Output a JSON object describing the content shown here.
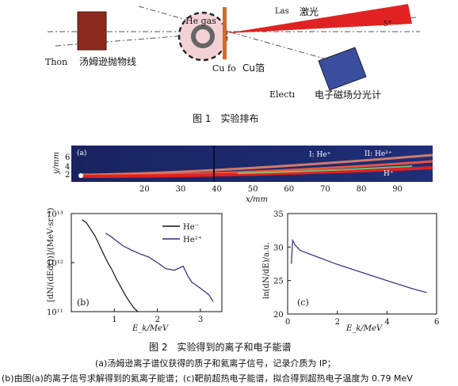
{
  "figure1": {
    "caption": "图 1　实验排布",
    "labels": {
      "thomson_en": "Thon",
      "thomson_cn": "汤姆逊抛物线",
      "he_gas": "He gas",
      "cu_en": "Cu fo",
      "cu_cn": "Cu箔",
      "laser_en": "Las",
      "laser_cn": "激光",
      "angle": "5°",
      "electron_en": "Electı",
      "electron_cn": "电子磁场分光计"
    }
  },
  "figure2": {
    "caption": "图 2　实验得到的离子和电子能谱",
    "subcaption_a": "(a)汤姆逊离子谱仪获得的质子和氦离子信号，记录介质为 IP；",
    "subcaption_b": "(b)由图(a)的离子信号求解得到的氦离子能谱；(c)靶前超热电子能谱，拟合得到超热电子温度为 0.79 MeV",
    "panel_a": {
      "tag": "(a)",
      "ylabel": "y/mm",
      "xlabel": "x/mm",
      "yticks": [
        "6",
        "4",
        "2"
      ],
      "xticks": [
        "20",
        "30",
        "40",
        "50",
        "60",
        "70",
        "80",
        "90"
      ],
      "labels": [
        "I: He⁺",
        "II: He²⁺",
        "H⁺"
      ]
    },
    "panel_b": {
      "tag": "(b)",
      "ylabel": "[dN/(dEdΩ)]/(MeV·sr⁻¹)",
      "xlabel": "E_k/MeV",
      "yticks": [
        "10¹³",
        "10¹²",
        "10¹¹"
      ],
      "xticks": [
        "1",
        "2",
        "3"
      ],
      "legend": [
        "He⁻",
        "He²⁺"
      ]
    },
    "panel_c": {
      "tag": "(c)",
      "ylabel": "ln(dN/dE)/a.u.",
      "xlabel": "E_k/MeV",
      "yticks": [
        "35",
        "30",
        "25",
        "20"
      ],
      "xticks": [
        "0",
        "2",
        "4",
        "6"
      ]
    }
  },
  "chart_data": [
    {
      "type": "line",
      "panel": "b",
      "xlabel": "E_k/MeV",
      "ylabel": "[dN/(dEdΩ)]/(MeV·sr⁻¹)",
      "yscale": "log",
      "xlim": [
        0,
        3.5
      ],
      "ylim": [
        100000000000.0,
        10000000000000.0
      ],
      "series": [
        {
          "name": "He⁻",
          "color": "#111111",
          "x": [
            0.25,
            0.35,
            0.45,
            0.55,
            0.65,
            0.75,
            0.85,
            0.95,
            1.05,
            1.15,
            1.25,
            1.35,
            1.45,
            1.55
          ],
          "y": [
            7500000000000.0,
            6500000000000.0,
            4800000000000.0,
            3500000000000.0,
            2300000000000.0,
            1500000000000.0,
            1000000000000.0,
            700000000000.0,
            460000000000.0,
            320000000000.0,
            220000000000.0,
            160000000000.0,
            120000000000.0,
            100000000000.0
          ]
        },
        {
          "name": "He²⁺",
          "color": "#2c2a7a",
          "x": [
            0.8,
            0.9,
            1.0,
            1.2,
            1.4,
            1.6,
            1.8,
            2.0,
            2.2,
            2.4,
            2.6,
            2.7,
            2.8,
            3.0,
            3.2,
            3.3
          ],
          "y": [
            4000000000000.0,
            3500000000000.0,
            3000000000000.0,
            2200000000000.0,
            1800000000000.0,
            1500000000000.0,
            1300000000000.0,
            1000000000000.0,
            750000000000.0,
            700000000000.0,
            850000000000.0,
            550000000000.0,
            400000000000.0,
            300000000000.0,
            220000000000.0,
            160000000000.0
          ]
        }
      ]
    },
    {
      "type": "line",
      "panel": "c",
      "xlabel": "E_k/MeV",
      "ylabel": "ln(dN/dE)/a.u.",
      "xlim": [
        0,
        6
      ],
      "ylim": [
        20,
        35
      ],
      "series": [
        {
          "name": "",
          "color": "#3a3a8a",
          "x": [
            0.15,
            0.2,
            0.25,
            0.3,
            0.5,
            1.0,
            2.0,
            3.0,
            4.0,
            5.0,
            5.6
          ],
          "y": [
            27.5,
            31.0,
            30.7,
            30.3,
            29.5,
            28.8,
            27.4,
            26.2,
            25.0,
            23.8,
            23.2
          ]
        }
      ]
    }
  ]
}
